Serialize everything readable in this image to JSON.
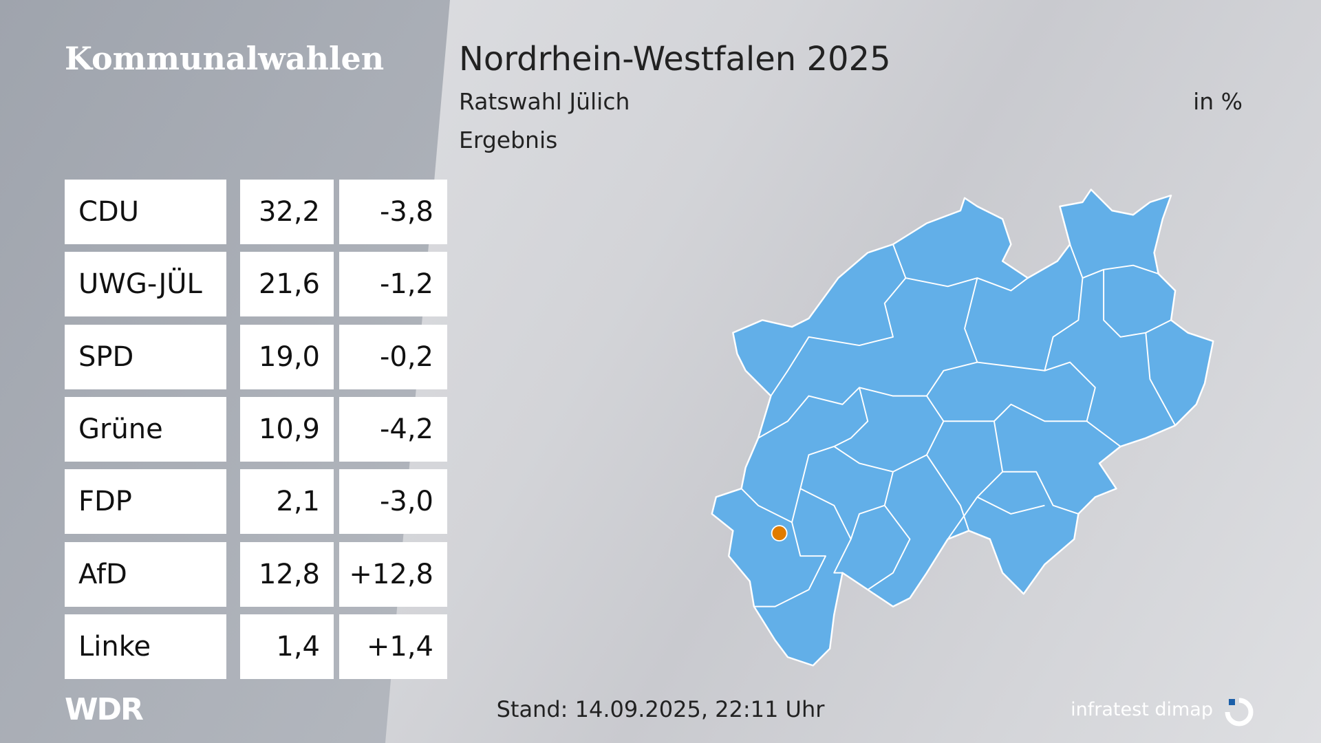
{
  "header": {
    "section": "Kommunalwahlen",
    "title": "Nordrhein-Westfalen 2025",
    "subtitle": "Ratswahl Jülich",
    "unit": "in %",
    "label": "Ergebnis"
  },
  "table": {
    "rows": [
      [
        "CDU",
        "32,2",
        "-3,8"
      ],
      [
        "UWG-JÜL",
        "21,6",
        "-1,2"
      ],
      [
        "SPD",
        "19,0",
        "-0,2"
      ],
      [
        "Grüne",
        "10,9",
        "-4,2"
      ],
      [
        "FDP",
        "2,1",
        "-3,0"
      ],
      [
        "AfD",
        "12,8",
        "+12,8"
      ],
      [
        "Linke",
        "1,4",
        "+1,4"
      ]
    ]
  },
  "footer": {
    "timestamp": "Stand: 14.09.2025, 22:11 Uhr",
    "broadcaster": "WDR",
    "source": "infratest dimap"
  }
}
